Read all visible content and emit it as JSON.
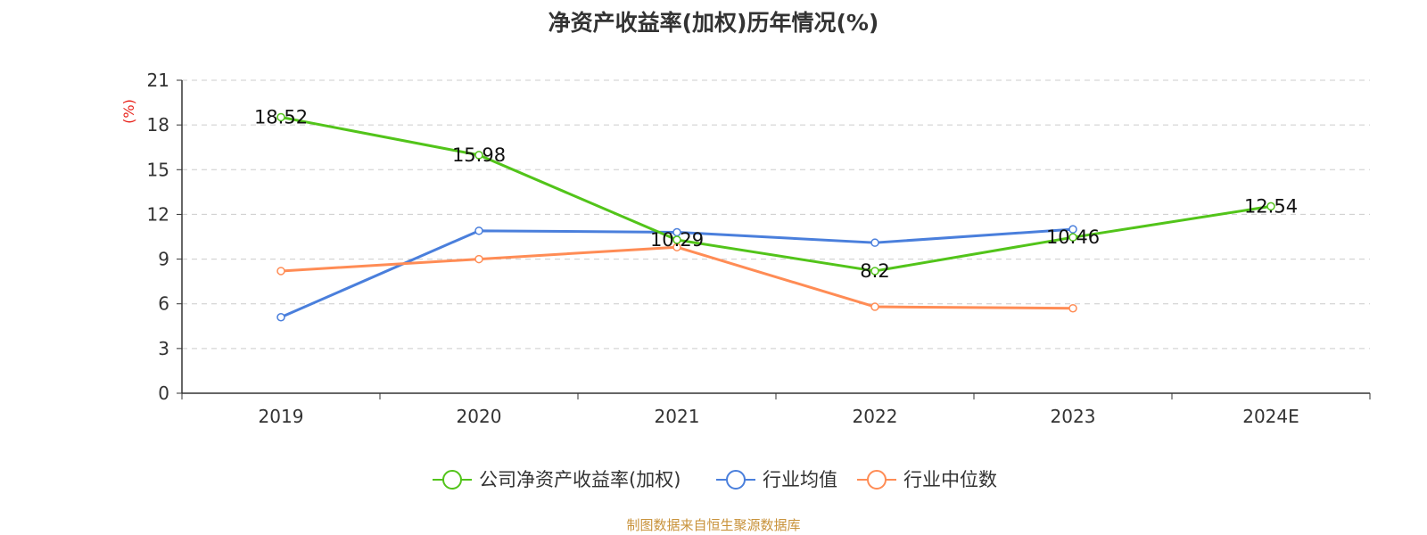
{
  "chart_data": {
    "type": "line",
    "title": "净资产收益率(加权)历年情况(%)",
    "ylabel": "(%)",
    "xlabel": "",
    "categories": [
      "2019",
      "2020",
      "2021",
      "2022",
      "2023",
      "2024E"
    ],
    "ylim": [
      0,
      21
    ],
    "yticks": [
      0,
      3,
      6,
      9,
      12,
      15,
      18,
      21
    ],
    "grid": true,
    "legend_position": "bottom-center",
    "series": [
      {
        "name": "公司净资产收益率(加权)",
        "color": "#52c41a",
        "values": [
          18.52,
          15.98,
          10.29,
          8.2,
          10.46,
          12.54
        ],
        "labels": [
          "18.52",
          "15.98",
          "10.29",
          "8.2",
          "10.46",
          "12.54"
        ]
      },
      {
        "name": "行业均值",
        "color": "#4a7fdc",
        "values": [
          5.1,
          10.9,
          10.8,
          10.1,
          11.0,
          null
        ]
      },
      {
        "name": "行业中位数",
        "color": "#ff8c55",
        "values": [
          8.2,
          9.0,
          9.8,
          5.8,
          5.7,
          null
        ]
      }
    ]
  },
  "footer": {
    "source": "制图数据来自恒生聚源数据库"
  }
}
